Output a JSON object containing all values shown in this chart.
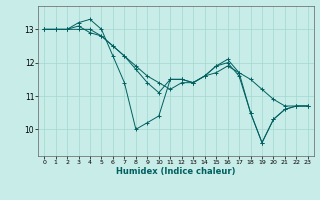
{
  "title": "",
  "xlabel": "Humidex (Indice chaleur)",
  "ylabel": "",
  "bg_color": "#c8ece8",
  "line_color": "#006060",
  "series": [
    [
      13.0,
      13.0,
      13.0,
      13.2,
      13.3,
      13.0,
      12.2,
      11.4,
      10.0,
      10.2,
      10.4,
      11.5,
      11.5,
      11.4,
      11.6,
      11.9,
      12.1,
      11.7,
      10.5,
      9.6,
      10.3,
      10.6,
      10.7,
      10.7
    ],
    [
      13.0,
      13.0,
      13.0,
      13.1,
      12.9,
      12.8,
      12.5,
      12.2,
      11.9,
      11.6,
      11.4,
      11.2,
      11.4,
      11.4,
      11.6,
      11.7,
      11.9,
      11.7,
      11.5,
      11.2,
      10.9,
      10.7,
      10.7,
      10.7
    ],
    [
      13.0,
      13.0,
      13.0,
      13.0,
      13.0,
      12.8,
      12.5,
      12.2,
      11.8,
      11.4,
      11.1,
      11.5,
      11.5,
      11.4,
      11.6,
      11.9,
      12.0,
      11.6,
      10.5,
      9.6,
      10.3,
      10.6,
      10.7,
      10.7
    ]
  ],
  "xlim": [
    -0.5,
    23.5
  ],
  "ylim": [
    9.2,
    13.7
  ],
  "xticks": [
    0,
    1,
    2,
    3,
    4,
    5,
    6,
    7,
    8,
    9,
    10,
    11,
    12,
    13,
    14,
    15,
    16,
    17,
    18,
    19,
    20,
    21,
    22,
    23
  ],
  "yticks": [
    10,
    11,
    12,
    13
  ],
  "grid_color": "#a0d8d0",
  "marker": "+"
}
